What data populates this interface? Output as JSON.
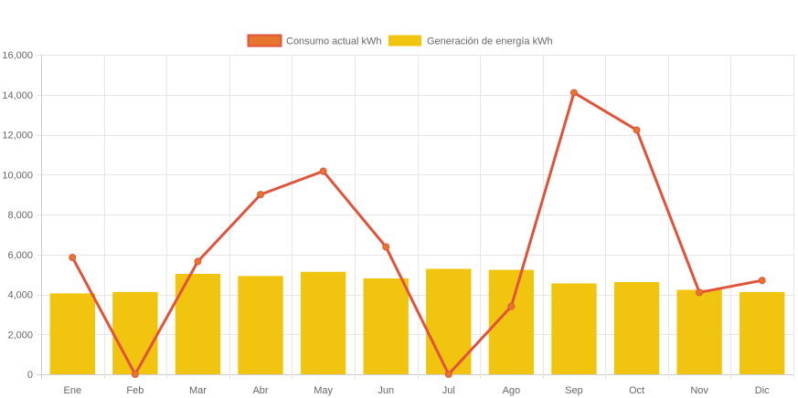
{
  "chart_data": {
    "type": "bar",
    "categories": [
      "Ene",
      "Feb",
      "Mar",
      "Abr",
      "May",
      "Jun",
      "Jul",
      "Ago",
      "Sep",
      "Oct",
      "Nov",
      "Dic"
    ],
    "series": [
      {
        "name": "Consumo actual kWh",
        "type": "line",
        "color": "#e0523a",
        "point_color": "#e6762e",
        "values": [
          5850,
          0,
          5650,
          9000,
          10170,
          6380,
          0,
          3400,
          14100,
          12230,
          4100,
          4700
        ]
      },
      {
        "name": "Generación de energía kWh",
        "type": "bar",
        "color": "#f1c40f",
        "values": [
          4050,
          4120,
          5030,
          4920,
          5130,
          4800,
          5280,
          5230,
          4550,
          4620,
          4230,
          4120
        ]
      }
    ],
    "ylim": [
      0,
      16000
    ],
    "yticks": [
      "0",
      "2,000",
      "4,000",
      "6,000",
      "8,000",
      "10,000",
      "12,000",
      "14,000",
      "16,000"
    ],
    "ytick_values": [
      0,
      2000,
      4000,
      6000,
      8000,
      10000,
      12000,
      14000,
      16000
    ],
    "grid": true,
    "legend_position": "top-center"
  }
}
